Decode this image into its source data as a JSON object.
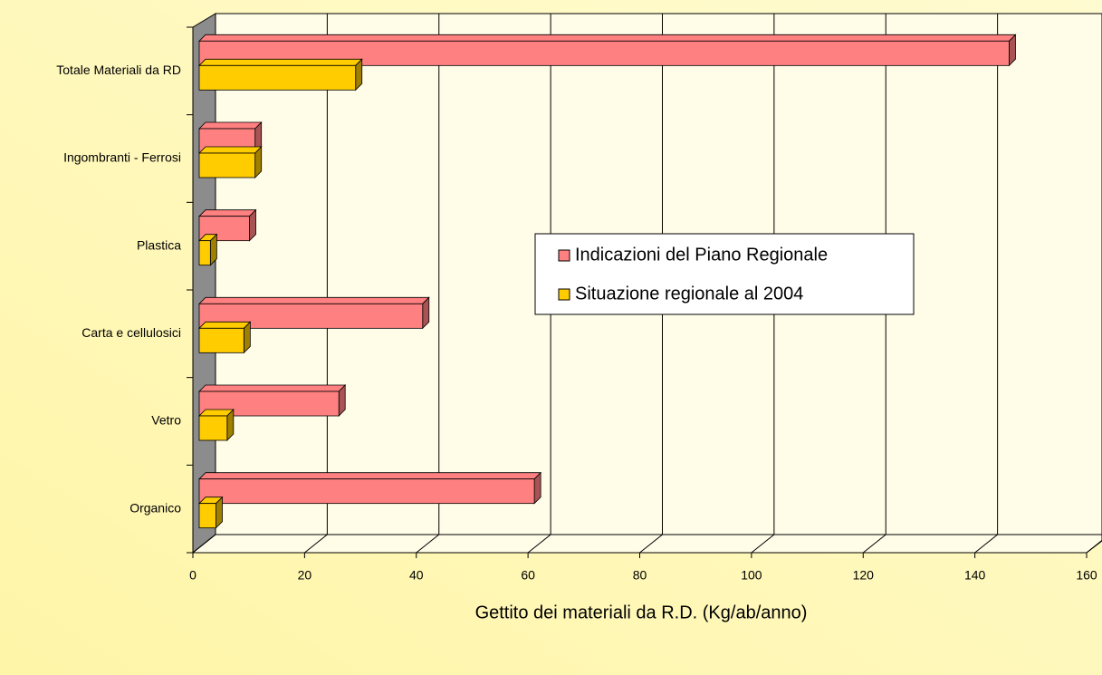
{
  "chart_data": {
    "type": "bar3d_horizontal",
    "x_label": "Gettito dei materiali da R.D. (Kg/ab/anno)",
    "categories": [
      "Organico",
      "Vetro",
      "Carta e cellulosici",
      "Plastica",
      "Ingombranti - Ferrosi",
      "Totale Materiali da RD"
    ],
    "series": [
      {
        "name": "Indicazioni del Piano Regionale",
        "color": "#ff8080",
        "values": [
          60,
          25,
          40,
          9,
          10,
          145
        ]
      },
      {
        "name": "Situazione regionale al 2004",
        "color": "#ffcc00",
        "values": [
          3,
          5,
          8,
          2,
          10,
          28
        ]
      }
    ],
    "xlim": [
      0,
      160
    ],
    "xticks": [
      0,
      20,
      40,
      60,
      80,
      100,
      120,
      140,
      160
    ],
    "grid": true
  }
}
